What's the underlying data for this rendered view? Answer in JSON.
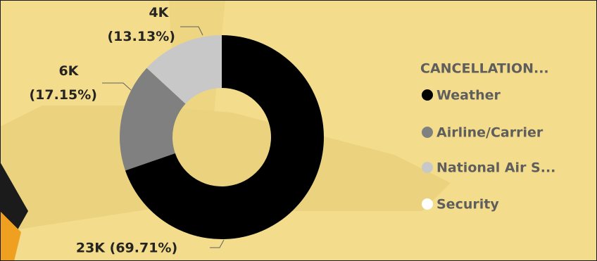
{
  "chart_data": {
    "type": "donut",
    "categories": [
      "Weather",
      "Airline/Carrier",
      "National Air S...",
      "Security"
    ],
    "values": [
      69.71,
      17.15,
      13.13,
      0.01
    ],
    "value_labels": [
      "23K (69.71%)",
      "6K (17.15%)",
      "4K (13.13%)",
      null
    ],
    "colors": [
      "#000000",
      "#808080",
      "#c8c8c8",
      "#ffffff"
    ],
    "legend_title": "CANCELLATION...",
    "legend": "right"
  }
}
